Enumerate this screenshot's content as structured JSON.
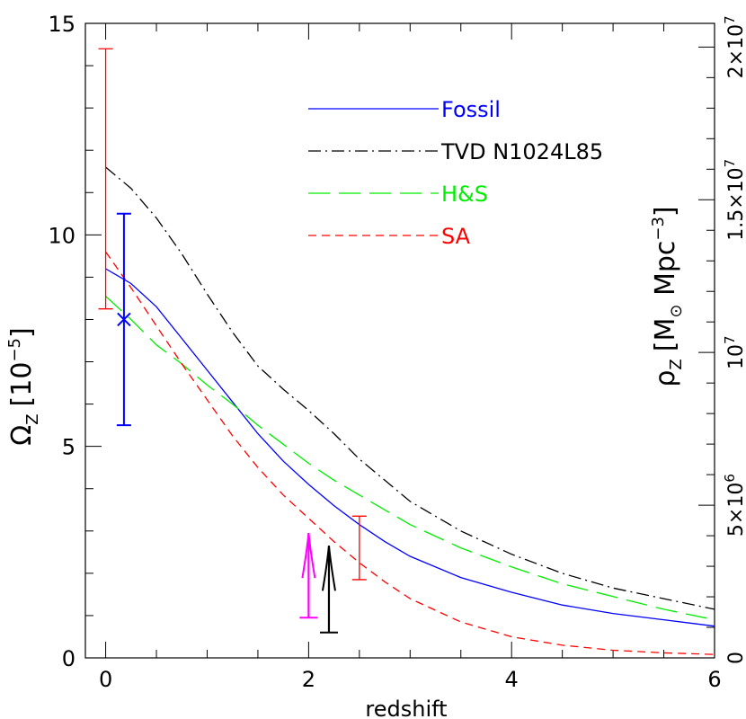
{
  "chart_data": {
    "type": "line",
    "xlabel": "redshift",
    "ylabel_left_main": "Ω",
    "ylabel_left_sub": "Z",
    "ylabel_left_units": "[10",
    "ylabel_left_exp": "−5",
    "ylabel_left_close": "]",
    "ylabel_right_main": "ρ",
    "ylabel_right_sub": "Z",
    "ylabel_right_units": "[M",
    "ylabel_right_units_sub": "⊙",
    "ylabel_right_units_mid": " Mpc",
    "ylabel_right_exp": "−3",
    "ylabel_right_close": "]",
    "xlim": [
      -0.2,
      6
    ],
    "ylim": [
      0,
      15
    ],
    "x_ticks": [
      {
        "value": 0,
        "label": "0"
      },
      {
        "value": 2,
        "label": "2"
      },
      {
        "value": 4,
        "label": "4"
      },
      {
        "value": 6,
        "label": "6"
      }
    ],
    "y_ticks": [
      {
        "value": 0,
        "label": "0"
      },
      {
        "value": 5,
        "label": "5"
      },
      {
        "value": 10,
        "label": "10"
      },
      {
        "value": 15,
        "label": "15"
      }
    ],
    "y_right_ticks": [
      {
        "value": 0,
        "label": "0"
      },
      {
        "value": 3.61,
        "label": "5×10",
        "exp": "6"
      },
      {
        "value": 7.22,
        "label": "10",
        "exp": "7"
      },
      {
        "value": 10.83,
        "label": "1.5×10",
        "exp": "7"
      },
      {
        "value": 14.44,
        "label": "2×10",
        "exp": "7"
      }
    ],
    "series": [
      {
        "name": "Fossil",
        "color": "#0000ff",
        "dash": "solid",
        "x": [
          0,
          0.25,
          0.5,
          0.75,
          1.0,
          1.25,
          1.5,
          1.75,
          2.0,
          2.25,
          2.5,
          2.75,
          3.0,
          3.5,
          4.0,
          4.5,
          5.0,
          5.5,
          6.0
        ],
        "y": [
          9.2,
          8.85,
          8.3,
          7.55,
          6.8,
          6.05,
          5.3,
          4.65,
          4.1,
          3.6,
          3.15,
          2.75,
          2.4,
          1.9,
          1.55,
          1.25,
          1.05,
          0.9,
          0.75
        ]
      },
      {
        "name": "TVD N1024L85",
        "color": "#000000",
        "dash": "dotdash",
        "x": [
          0,
          0.25,
          0.5,
          0.75,
          1.0,
          1.25,
          1.5,
          1.75,
          2.0,
          2.25,
          2.5,
          2.75,
          3.0,
          3.5,
          4.0,
          4.5,
          5.0,
          5.5,
          6.0
        ],
        "y": [
          11.6,
          11.1,
          10.4,
          9.55,
          8.6,
          7.7,
          6.9,
          6.35,
          5.85,
          5.3,
          4.7,
          4.2,
          3.7,
          3.0,
          2.45,
          2.0,
          1.65,
          1.4,
          1.15
        ]
      },
      {
        "name": "H&S",
        "color": "#00ee00",
        "dash": "longdash",
        "x": [
          0,
          0.25,
          0.5,
          0.75,
          1.0,
          1.25,
          1.5,
          1.75,
          2.0,
          2.25,
          2.5,
          2.75,
          3.0,
          3.5,
          4.0,
          4.5,
          5.0,
          5.5,
          6.0
        ],
        "y": [
          8.55,
          8.0,
          7.4,
          6.95,
          6.45,
          6.0,
          5.5,
          5.05,
          4.6,
          4.2,
          3.85,
          3.5,
          3.15,
          2.6,
          2.15,
          1.75,
          1.45,
          1.15,
          0.9
        ]
      },
      {
        "name": "SA",
        "color": "#ff0000",
        "dash": "shortdash",
        "x": [
          0,
          0.25,
          0.5,
          0.75,
          1.0,
          1.25,
          1.5,
          1.75,
          2.0,
          2.25,
          2.5,
          2.75,
          3.0,
          3.5,
          4.0,
          4.5,
          5.0,
          5.5,
          6.0
        ],
        "y": [
          9.6,
          8.75,
          7.85,
          6.95,
          6.1,
          5.25,
          4.5,
          3.85,
          3.3,
          2.75,
          2.25,
          1.8,
          1.4,
          0.85,
          0.5,
          0.3,
          0.18,
          0.12,
          0.08
        ]
      }
    ],
    "error_bars": [
      {
        "x": 0.0,
        "low": 8.25,
        "high": 14.4,
        "color": "#ff0000"
      },
      {
        "x": 0.18,
        "low": 5.5,
        "high": 10.5,
        "center": 8.0,
        "color": "#0000ff",
        "marker": "x"
      },
      {
        "x": 2.5,
        "low": 1.85,
        "high": 3.35,
        "color": "#ff0000"
      }
    ],
    "lower_limits": [
      {
        "x": 2.0,
        "from": 0.95,
        "to": 2.95,
        "color": "#ff00ff"
      },
      {
        "x": 2.2,
        "from": 0.6,
        "to": 2.65,
        "color": "#000000"
      }
    ],
    "legend_placement": "top-center",
    "grid": false
  }
}
